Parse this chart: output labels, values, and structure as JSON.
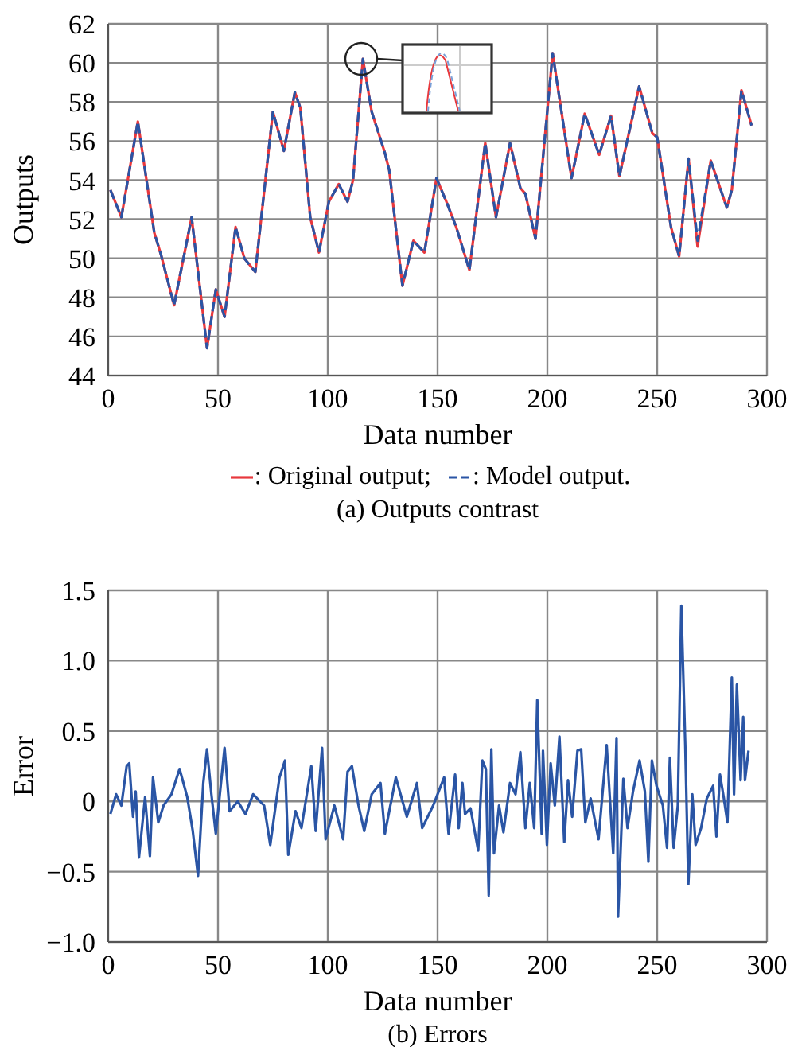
{
  "chart_data": [
    {
      "type": "line",
      "xlabel": "Data number",
      "ylabel": "Outputs",
      "subtitle": "(a) Outputs contrast",
      "legend": "bottom",
      "grid": true,
      "xlim": [
        0,
        300
      ],
      "xticks": [
        0,
        50,
        100,
        150,
        200,
        250,
        300
      ],
      "ylim": [
        44,
        62
      ],
      "yticks": [
        44,
        46,
        48,
        50,
        52,
        54,
        56,
        58,
        60,
        62
      ],
      "x": [
        1,
        6,
        13.5,
        21,
        24,
        30,
        38,
        45,
        49,
        53,
        58,
        62,
        67,
        75,
        80,
        85,
        87.5,
        92,
        96,
        100.5,
        105,
        109,
        111.5,
        116,
        120,
        126,
        128,
        134,
        139,
        144,
        149.5,
        154,
        158.5,
        164.5,
        171.7,
        176.6,
        183,
        187.7,
        190,
        194.6,
        202.4,
        211,
        217,
        223.6,
        229,
        232.8,
        241.8,
        247.8,
        250,
        256.3,
        260,
        264.3,
        268.4,
        274.4,
        281.7,
        284,
        288.4,
        293
      ],
      "series": [
        {
          "name": ": Original output;",
          "color": "#e8383d",
          "line_style": "solid",
          "values": [
            53.5,
            52.1,
            57.0,
            51.3,
            50.2,
            47.6,
            52.1,
            45.4,
            48.4,
            47.0,
            51.6,
            50.0,
            49.3,
            57.5,
            55.5,
            58.5,
            57.7,
            52.1,
            50.3,
            52.9,
            53.8,
            52.9,
            54.0,
            60.2,
            57.5,
            55.4,
            54.5,
            48.6,
            50.9,
            50.3,
            54.1,
            52.9,
            51.6,
            49.4,
            55.9,
            52.1,
            55.9,
            53.6,
            53.3,
            51.0,
            60.5,
            54.1,
            57.4,
            55.3,
            57.3,
            54.2,
            58.8,
            56.4,
            56.2,
            51.6,
            50.1,
            55.1,
            50.6,
            55.0,
            52.6,
            53.5,
            58.6,
            56.8
          ]
        },
        {
          "name": ": Model output.",
          "color": "#2a55a5",
          "line_style": "dashed",
          "values": [
            53.5,
            52.1,
            57.0,
            51.3,
            50.2,
            47.6,
            52.1,
            45.4,
            48.4,
            47.0,
            51.6,
            50.0,
            49.3,
            57.5,
            55.5,
            58.5,
            57.7,
            52.1,
            50.3,
            52.9,
            53.8,
            52.9,
            54.0,
            60.2,
            57.5,
            55.4,
            54.5,
            48.6,
            50.9,
            50.3,
            54.1,
            52.9,
            51.6,
            49.4,
            55.9,
            52.1,
            55.9,
            53.6,
            53.3,
            51.0,
            60.5,
            54.1,
            57.4,
            55.3,
            57.3,
            54.2,
            58.8,
            56.4,
            56.2,
            51.6,
            50.1,
            55.1,
            50.9,
            55.0,
            52.6,
            53.5,
            58.6,
            56.8
          ]
        }
      ]
    },
    {
      "type": "line",
      "xlabel": "Data number",
      "ylabel": "Error",
      "subtitle": "(b) Errors",
      "grid": true,
      "xlim": [
        0,
        300
      ],
      "xticks": [
        0,
        50,
        100,
        150,
        200,
        250,
        300
      ],
      "ylim": [
        -1.0,
        1.5
      ],
      "yticks": [
        {
          "value": -1.0,
          "label": "−1.0"
        },
        {
          "value": -0.5,
          "label": "−0.5"
        },
        0,
        0.5,
        {
          "value": 1.0,
          "label": "1.0"
        },
        1.5
      ],
      "x": [
        1,
        3.6,
        6,
        8.4,
        9.6,
        11.3,
        12.5,
        14,
        16.8,
        19,
        20.4,
        22.8,
        25.2,
        28.8,
        32.5,
        36,
        38.5,
        40.9,
        43.3,
        45,
        47,
        49,
        53,
        55.3,
        59,
        62.5,
        66,
        71,
        73.8,
        78,
        80.5,
        82,
        85.3,
        88,
        92.5,
        94.5,
        97.4,
        99,
        103,
        107,
        109,
        111,
        114,
        116.6,
        120,
        124,
        126,
        131,
        136,
        140.6,
        143,
        148,
        153,
        155,
        158,
        159.6,
        161.3,
        162.5,
        165,
        168.5,
        170.4,
        172,
        173.3,
        174.5,
        175.7,
        178,
        180,
        183,
        185.5,
        187.7,
        190,
        192,
        194,
        195.4,
        197.4,
        198,
        199.8,
        201.5,
        203.4,
        205.5,
        207.7,
        209.4,
        211.3,
        213.7,
        215.4,
        217.3,
        219.7,
        223.3,
        227,
        230,
        231.5,
        232.2,
        234.6,
        236.5,
        239,
        242,
        244.4,
        246,
        247.6,
        249.7,
        252.6,
        254.5,
        255.8,
        257.5,
        259.4,
        261,
        262.8,
        264.2,
        266,
        267.5,
        270,
        272.6,
        275.5,
        277,
        278.6,
        280.3,
        282,
        284,
        285,
        286.3,
        288,
        289.2,
        290,
        291.6
      ],
      "series": [
        {
          "color": "#2a55a5",
          "values": [
            -0.09,
            0.05,
            -0.03,
            0.25,
            0.27,
            -0.11,
            0.07,
            -0.4,
            0.03,
            -0.39,
            0.17,
            -0.15,
            -0.03,
            0.05,
            0.23,
            0.03,
            -0.21,
            -0.53,
            0.13,
            0.37,
            0.05,
            -0.23,
            0.38,
            -0.07,
            0,
            -0.09,
            0.05,
            -0.03,
            -0.31,
            0.17,
            0.29,
            -0.38,
            -0.07,
            -0.19,
            0.25,
            -0.21,
            0.38,
            -0.27,
            -0.03,
            -0.27,
            0.21,
            0.25,
            -0.03,
            -0.21,
            0.05,
            0.13,
            -0.23,
            0.17,
            -0.11,
            0.13,
            -0.19,
            -0.03,
            0.17,
            -0.23,
            0.19,
            -0.19,
            0.13,
            -0.09,
            -0.05,
            -0.35,
            0.29,
            0.23,
            -0.67,
            0.37,
            -0.37,
            -0.03,
            -0.22,
            0.13,
            0.05,
            0.35,
            -0.19,
            0.13,
            -0.19,
            0.72,
            -0.23,
            0.36,
            -0.31,
            0.27,
            -0.03,
            0.46,
            -0.29,
            0.15,
            -0.11,
            0.36,
            0.37,
            -0.15,
            0.02,
            -0.27,
            0.4,
            -0.37,
            0.45,
            -0.82,
            0.16,
            -0.19,
            0.07,
            0.29,
            0.07,
            -0.43,
            0.29,
            0.11,
            -0.03,
            -0.33,
            0.31,
            -0.33,
            -0.03,
            1.39,
            0.4,
            -0.59,
            0.05,
            -0.31,
            -0.19,
            0.02,
            0.11,
            -0.25,
            0.19,
            0.03,
            -0.15,
            0.88,
            0.05,
            0.83,
            0.15,
            0.6,
            0.15,
            0.36
          ]
        }
      ]
    }
  ]
}
